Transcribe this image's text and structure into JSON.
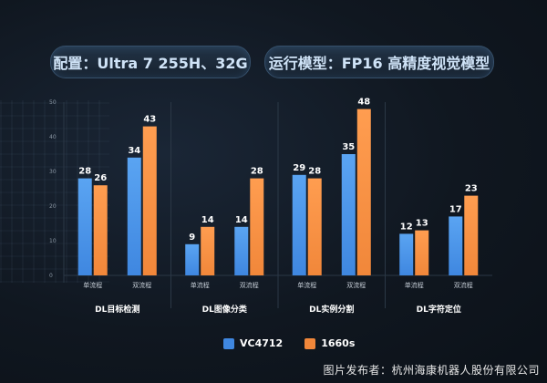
{
  "header": {
    "config_label": "配置：Ultra 7 255H、32G",
    "model_label": "运行模型：FP16 高精度视觉模型"
  },
  "colors": {
    "series_1": "#3f87e0",
    "series_2": "#f1873a",
    "axis_text": "#8a96a3",
    "bar_label": "#ffffff"
  },
  "chart_data": {
    "type": "bar",
    "groups": [
      "DL目标检测",
      "DL图像分类",
      "DL实例分割",
      "DL字符定位"
    ],
    "categories": [
      "单流程",
      "双流程",
      "单流程",
      "双流程",
      "单流程",
      "双流程",
      "单流程",
      "双流程"
    ],
    "series": [
      {
        "name": "VC4712",
        "values": [
          28,
          34,
          9,
          14,
          29,
          35,
          12,
          17
        ]
      },
      {
        "name": "1660s",
        "values": [
          26,
          43,
          14,
          28,
          28,
          48,
          13,
          23
        ]
      }
    ],
    "ylim": [
      0,
      50
    ],
    "yticks": [
      0,
      10,
      20,
      30,
      40,
      50
    ],
    "grid": false,
    "legend_position": "bottom"
  },
  "footer": {
    "credit": "图片发布者：杭州海康机器人股份有限公司"
  }
}
